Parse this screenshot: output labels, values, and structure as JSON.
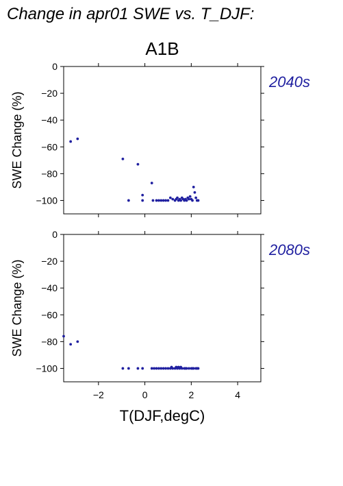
{
  "chart_data": {
    "type": "scatter",
    "title": "Change in apr01 SWE vs. T_DJF:",
    "subtitle": "A1B",
    "xlabel": "T(DJF,degC)",
    "ylabel": "SWE Change (%)",
    "xlim": [
      -3.5,
      5
    ],
    "ylim": [
      -110,
      0
    ],
    "xticks": [
      -2,
      0,
      2,
      4
    ],
    "yticks": [
      0,
      -20,
      -40,
      -60,
      -80,
      -100
    ],
    "grid": false,
    "marker_color": "#2020a0",
    "panels": [
      {
        "label": "2040s",
        "points": [
          [
            -3.2,
            -56
          ],
          [
            -2.9,
            -54
          ],
          [
            -0.95,
            -69
          ],
          [
            -0.3,
            -73
          ],
          [
            -0.1,
            -96
          ],
          [
            -0.1,
            -100
          ],
          [
            -0.7,
            -100
          ],
          [
            0.3,
            -87
          ],
          [
            0.35,
            -100
          ],
          [
            0.5,
            -100
          ],
          [
            0.6,
            -100
          ],
          [
            0.7,
            -100
          ],
          [
            0.8,
            -100
          ],
          [
            0.9,
            -100
          ],
          [
            1.0,
            -100
          ],
          [
            1.1,
            -98
          ],
          [
            1.2,
            -99
          ],
          [
            1.3,
            -100
          ],
          [
            1.35,
            -99
          ],
          [
            1.4,
            -98
          ],
          [
            1.45,
            -100
          ],
          [
            1.5,
            -99
          ],
          [
            1.55,
            -100
          ],
          [
            1.6,
            -98
          ],
          [
            1.65,
            -99
          ],
          [
            1.7,
            -100
          ],
          [
            1.75,
            -99
          ],
          [
            1.8,
            -100
          ],
          [
            1.85,
            -98
          ],
          [
            1.9,
            -99
          ],
          [
            1.95,
            -97
          ],
          [
            2.0,
            -99
          ],
          [
            2.05,
            -100
          ],
          [
            2.1,
            -90
          ],
          [
            2.15,
            -94
          ],
          [
            2.2,
            -98
          ],
          [
            2.25,
            -100
          ],
          [
            2.3,
            -100
          ]
        ]
      },
      {
        "label": "2080s",
        "points": [
          [
            -3.5,
            -76
          ],
          [
            -3.2,
            -82
          ],
          [
            -2.9,
            -80
          ],
          [
            -0.95,
            -100
          ],
          [
            -0.7,
            -100
          ],
          [
            -0.3,
            -100
          ],
          [
            -0.1,
            -100
          ],
          [
            0.3,
            -100
          ],
          [
            0.4,
            -100
          ],
          [
            0.5,
            -100
          ],
          [
            0.6,
            -100
          ],
          [
            0.7,
            -100
          ],
          [
            0.8,
            -100
          ],
          [
            0.9,
            -100
          ],
          [
            1.0,
            -100
          ],
          [
            1.1,
            -100
          ],
          [
            1.15,
            -99
          ],
          [
            1.2,
            -100
          ],
          [
            1.3,
            -100
          ],
          [
            1.35,
            -99
          ],
          [
            1.4,
            -100
          ],
          [
            1.45,
            -99
          ],
          [
            1.5,
            -100
          ],
          [
            1.55,
            -99
          ],
          [
            1.6,
            -100
          ],
          [
            1.7,
            -100
          ],
          [
            1.75,
            -100
          ],
          [
            1.8,
            -100
          ],
          [
            1.9,
            -100
          ],
          [
            2.0,
            -100
          ],
          [
            2.05,
            -100
          ],
          [
            2.1,
            -100
          ],
          [
            2.2,
            -100
          ],
          [
            2.25,
            -100
          ],
          [
            2.3,
            -100
          ]
        ]
      }
    ]
  }
}
